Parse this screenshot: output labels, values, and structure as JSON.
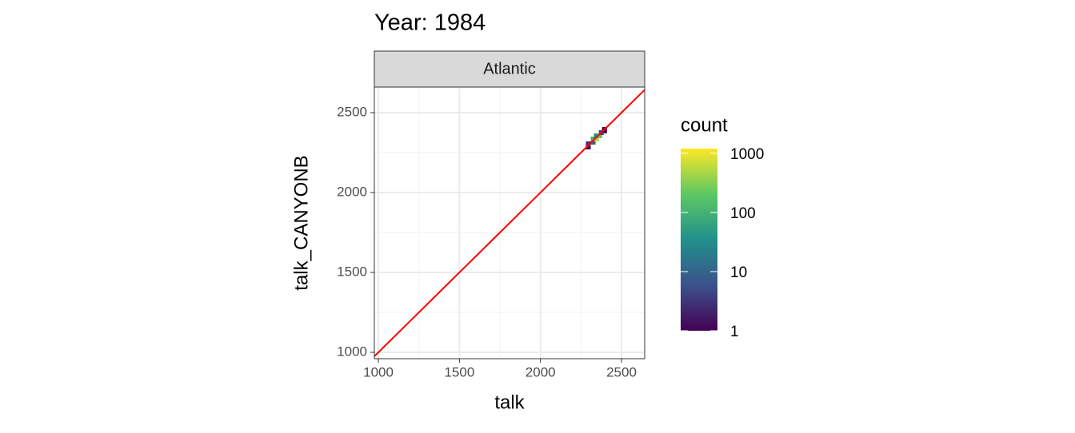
{
  "chart_data": {
    "type": "bin2d",
    "title": "Year: 1984",
    "facet": "Atlantic",
    "x_label": "talk",
    "y_label": "talk_CANYONB",
    "x": [
      2295,
      2295,
      2325,
      2325,
      2345,
      2345,
      2365,
      2375,
      2395,
      2395
    ],
    "y": [
      2285,
      2305,
      2315,
      2335,
      2335,
      2355,
      2355,
      2375,
      2385,
      2395
    ],
    "count": [
      1,
      3,
      10,
      100,
      500,
      30,
      200,
      5,
      2,
      1
    ],
    "binwidth": 30,
    "xlim": [
      975,
      2643
    ],
    "ylim": [
      960,
      2660
    ],
    "xticks": [
      1000,
      1500,
      2000,
      2500
    ],
    "yticks": [
      1000,
      1500,
      2000,
      2500
    ],
    "grid": true,
    "reference_line": {
      "slope": 1,
      "intercept": 0,
      "color": "#ff0000"
    },
    "legend": {
      "title": "count",
      "log": true,
      "lim": [
        1,
        1200
      ],
      "ticks": [
        1,
        10,
        100,
        1000
      ],
      "color_stops": [
        "#440154",
        "#3b528b",
        "#21908c",
        "#5dc863",
        "#fde725"
      ]
    }
  }
}
